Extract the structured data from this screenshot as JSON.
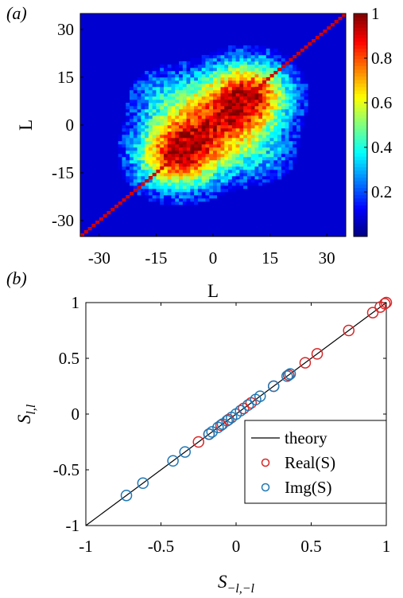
{
  "chart_data": [
    {
      "type": "heatmap",
      "panel_label": "(a)",
      "xlabel": "L",
      "ylabel": "L",
      "xlim": [
        -35,
        35
      ],
      "ylim": [
        -35,
        35
      ],
      "xticks": [
        -30,
        -15,
        0,
        15,
        30
      ],
      "yticks": [
        -30,
        -15,
        0,
        15,
        30
      ],
      "xtick_labels": [
        "-30",
        "-15",
        "0",
        "15",
        "30"
      ],
      "ytick_labels": [
        "-30",
        "-15",
        "0",
        "15",
        "30"
      ],
      "colorbar": {
        "range": [
          0,
          1
        ],
        "ticks": [
          0.2,
          0.4,
          0.6,
          0.8,
          1
        ],
        "tick_labels": [
          "0.2",
          "0.4",
          "0.6",
          "0.8",
          "1"
        ],
        "colormap": "jet"
      },
      "diagonal_value": 1
    },
    {
      "type": "scatter",
      "panel_label": "(b)",
      "xlabel": "S",
      "xlabel_sub": "−l,−l",
      "ylabel": "S",
      "ylabel_sub": "l,l",
      "xlim": [
        -1,
        1
      ],
      "ylim": [
        -1,
        1
      ],
      "xticks": [
        -1,
        -0.5,
        0,
        0.5,
        1
      ],
      "yticks": [
        -1,
        -0.5,
        0,
        0.5,
        1
      ],
      "xtick_labels": [
        "-1",
        "-0.5",
        "0",
        "0.5",
        "1"
      ],
      "ytick_labels": [
        "-1",
        "-0.5",
        "0",
        "0.5",
        "1"
      ],
      "legend_position": "bottom-right",
      "series": [
        {
          "name": "theory",
          "kind": "line",
          "color": "#000000",
          "x": [
            -1,
            1
          ],
          "y": [
            -1,
            1
          ]
        },
        {
          "name": "Real(S)",
          "kind": "marker",
          "color": "#d62728",
          "x": [
            -0.25,
            -0.18,
            -0.1,
            -0.05,
            0.05,
            0.1,
            0.25,
            0.35,
            0.46,
            0.54,
            0.75,
            0.91,
            0.96,
            0.99,
            1.0
          ],
          "y": [
            -0.25,
            -0.18,
            -0.1,
            -0.05,
            0.05,
            0.1,
            0.25,
            0.35,
            0.46,
            0.54,
            0.75,
            0.91,
            0.96,
            0.99,
            1.0
          ]
        },
        {
          "name": "Img(S)",
          "kind": "marker",
          "color": "#1f77b4",
          "x": [
            -0.73,
            -0.62,
            -0.42,
            -0.34,
            -0.18,
            -0.16,
            -0.12,
            -0.09,
            -0.06,
            -0.03,
            0.0,
            0.03,
            0.08,
            0.13,
            0.16,
            0.25,
            0.34,
            0.36
          ],
          "y": [
            -0.73,
            -0.62,
            -0.42,
            -0.34,
            -0.18,
            -0.16,
            -0.12,
            -0.09,
            -0.06,
            -0.03,
            0.0,
            0.03,
            0.08,
            0.13,
            0.16,
            0.25,
            0.34,
            0.36
          ]
        }
      ]
    }
  ]
}
